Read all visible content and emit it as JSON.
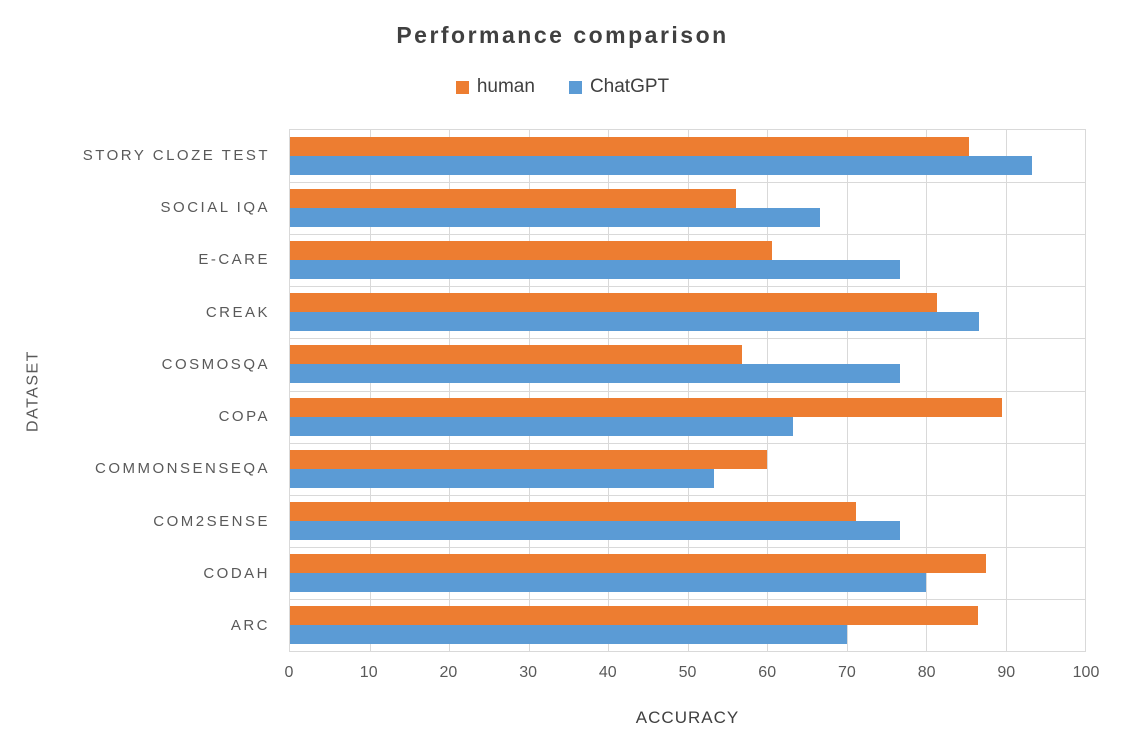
{
  "chart_data": {
    "type": "bar",
    "orientation": "horizontal",
    "title": "Performance comparison",
    "categories": [
      "STORY CLOZE TEST",
      "SOCIAL IQA",
      "E-CARE",
      "CREAK",
      "COSMOSQA",
      "COPA",
      "COMMONSENSEQA",
      "COM2SENSE",
      "CODAH",
      "ARC"
    ],
    "series": [
      {
        "name": "human",
        "color": "#ED7D31",
        "values": [
          85.4,
          56.1,
          60.6,
          81.4,
          56.9,
          89.6,
          60.0,
          71.2,
          87.5,
          86.6
        ]
      },
      {
        "name": "ChatGPT",
        "color": "#5B9BD5",
        "values": [
          93.3,
          66.7,
          76.7,
          86.7,
          76.7,
          63.3,
          53.3,
          76.7,
          80.0,
          70.0
        ]
      }
    ],
    "xlabel": "ACCURACY",
    "ylabel": "DATASET",
    "xlim": [
      0,
      100
    ],
    "x_tick_step": 10,
    "x_ticks": [
      0,
      10,
      20,
      30,
      40,
      50,
      60,
      70,
      80,
      90,
      100
    ],
    "grid": true,
    "legend_position": "top",
    "gridline_color": "#D9D9D9",
    "text_color": "#595959",
    "title_color": "#404040",
    "background": "#FFFFFF"
  }
}
